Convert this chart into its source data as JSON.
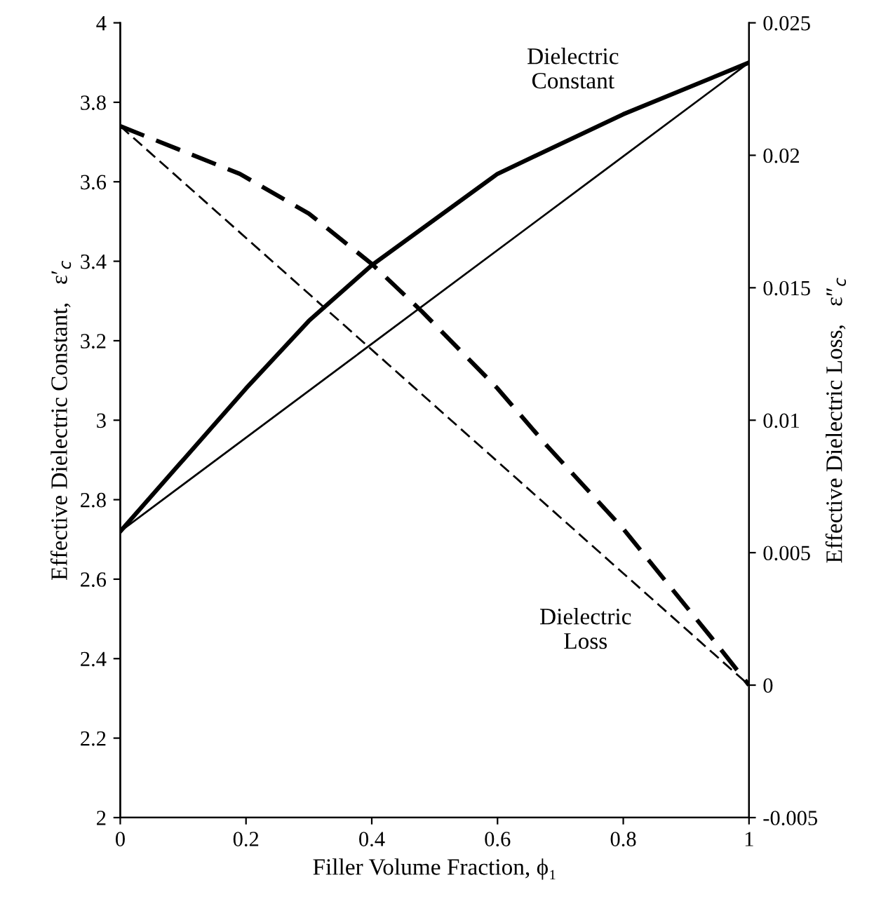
{
  "chart_data": {
    "type": "line",
    "xlabel": "Filler Volume Fraction, ϕ₁",
    "ylabel": "Effective Dielectric Constant,   ε′$_{c}$",
    "y2label": "Effective Dielectric Loss,   ε″$_{c}$",
    "xlim": [
      0,
      1
    ],
    "xticks": [
      0,
      {
        "value": 0.2,
        "label": "0.2"
      },
      {
        "value": 0.4,
        "label": "0.4"
      },
      {
        "value": 0.6,
        "label": "0.6"
      },
      {
        "value": 0.8,
        "label": "0.8"
      },
      1
    ],
    "ylim": [
      2,
      4
    ],
    "yticks": [
      2,
      {
        "value": 2.2,
        "label": "2.2"
      },
      {
        "value": 2.4,
        "label": "2.4"
      },
      {
        "value": 2.6,
        "label": "2.6"
      },
      {
        "value": 2.8,
        "label": "2.8"
      },
      3,
      {
        "value": 3.2,
        "label": "3.2"
      },
      {
        "value": 3.4,
        "label": "3.4"
      },
      {
        "value": 3.6,
        "label": "3.6"
      },
      {
        "value": 3.8,
        "label": "3.8"
      },
      4
    ],
    "y2lim": [
      -0.005,
      0.025
    ],
    "y2ticks": [
      -0.005,
      0,
      0.005,
      0.01,
      0.015,
      0.02,
      0.025
    ],
    "grid": false,
    "legend": false,
    "marker": "none",
    "series": [
      {
        "color": "#000000",
        "line_style": "solid",
        "x": [
          0,
          0.1,
          0.2,
          0.3,
          0.4,
          0.6,
          0.8,
          1
        ],
        "values": [
          2.72,
          2.9,
          3.08,
          3.25,
          3.39,
          3.62,
          3.77,
          3.9
        ]
      },
      {
        "color": "#000000",
        "line_style": "solid",
        "x": [
          0,
          1
        ],
        "values": [
          2.72,
          3.9
        ]
      },
      {
        "color": "#000000",
        "line_style": "dashed",
        "axis": "y2",
        "x": [
          0,
          0.19,
          0.3,
          0.4,
          0.48,
          0.6,
          0.68,
          0.8,
          0.94,
          1
        ],
        "values": [
          0.0211,
          0.0193,
          0.0178,
          0.0159,
          0.0141,
          0.0112,
          0.009,
          0.0059,
          0.0018,
          0
        ]
      },
      {
        "color": "#000000",
        "line_style": "dashed",
        "axis": "y2",
        "x": [
          0,
          1
        ],
        "values": [
          0.0211,
          0
        ]
      }
    ],
    "annotations": [
      "Dielectric\nConstant",
      "Dielectric\nLoss"
    ]
  }
}
